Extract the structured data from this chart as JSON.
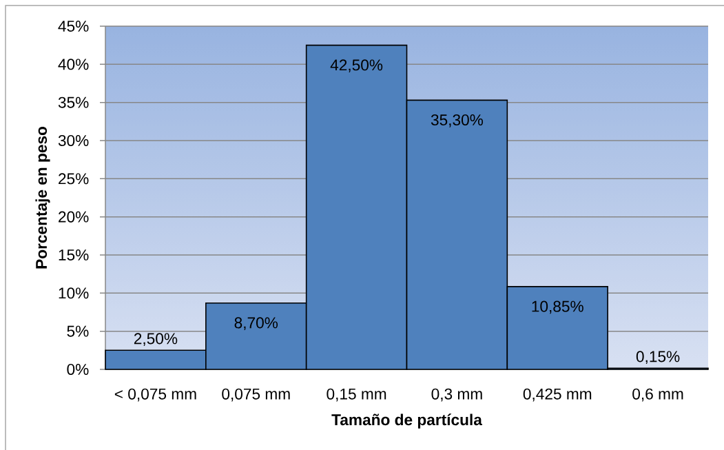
{
  "chart_data": {
    "type": "bar",
    "xlabel": "Tamaño de partícula",
    "ylabel": "Porcentaje en peso",
    "categories": [
      "< 0,075 mm",
      "0,075 mm",
      "0,15 mm",
      "0,3 mm",
      "0,425 mm",
      "0,6 mm"
    ],
    "values": [
      2.5,
      8.7,
      42.5,
      35.3,
      10.85,
      0.15
    ],
    "value_labels": [
      "2,50%",
      "8,70%",
      "42,50%",
      "35,30%",
      "10,85%",
      "0,15%"
    ],
    "color": "#4f81bd",
    "ylim": [
      0,
      45
    ],
    "yticks": [
      {
        "value": 0,
        "label": "0%"
      },
      {
        "value": 5,
        "label": "5%"
      },
      {
        "value": 10,
        "label": "10%"
      },
      {
        "value": 15,
        "label": "15%"
      },
      {
        "value": 20,
        "label": "20%"
      },
      {
        "value": 25,
        "label": "25%"
      },
      {
        "value": 30,
        "label": "30%"
      },
      {
        "value": 35,
        "label": "35%"
      },
      {
        "value": 40,
        "label": "40%"
      },
      {
        "value": 45,
        "label": "45%"
      }
    ],
    "grid": "y"
  }
}
